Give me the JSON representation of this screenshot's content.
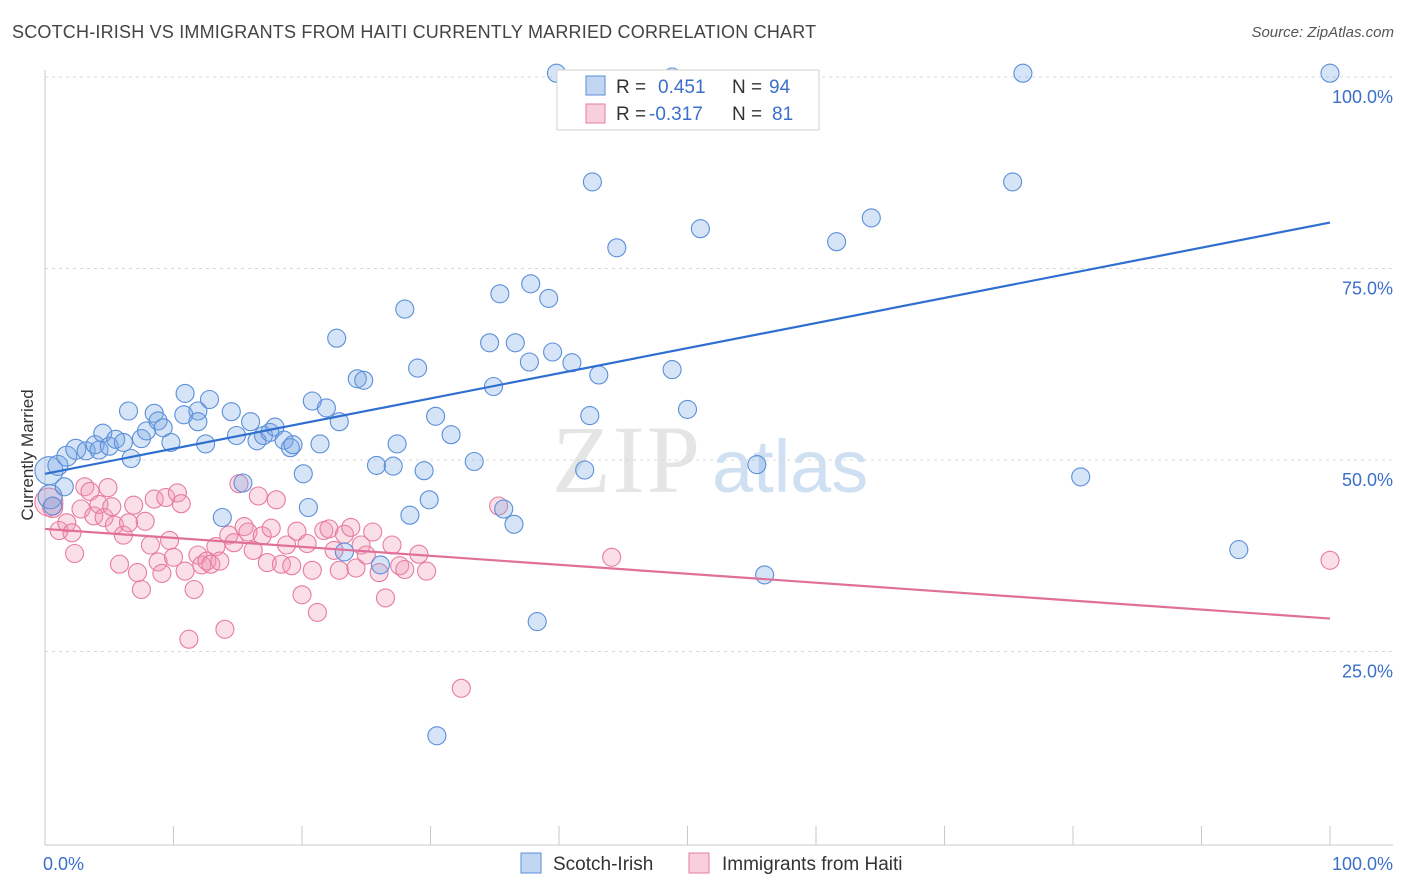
{
  "title": "SCOTCH-IRISH VS IMMIGRANTS FROM HAITI CURRENTLY MARRIED CORRELATION CHART",
  "source": "Source: ZipAtlas.com",
  "watermark": {
    "zip": "ZIP",
    "atlas": "atlas"
  },
  "colors": {
    "blue": "#5b8fd9",
    "blue_fill": "rgba(120,165,230,0.30)",
    "blue_line": "#2f6fcf",
    "pink": "#e87ba0",
    "pink_fill": "rgba(240,150,180,0.30)",
    "pink_line": "#e0709a",
    "grid": "#d8d8d8",
    "axis_text": "#3b6fc9"
  },
  "legend": {
    "rows": [
      {
        "r_label": "R =",
        "r_value": "0.451",
        "n_label": "N =",
        "n_value": "94",
        "color": "blue"
      },
      {
        "r_label": "R =",
        "r_value": "-0.317",
        "n_label": "N =",
        "n_value": "81",
        "color": "pink"
      }
    ]
  },
  "bottom_legend": [
    "Scotch-Irish",
    "Immigrants from Haiti"
  ],
  "chart_data": {
    "type": "scatter",
    "title": "SCOTCH-IRISH VS IMMIGRANTS FROM HAITI CURRENTLY MARRIED CORRELATION CHART",
    "xlabel": "",
    "ylabel": "Currently Married",
    "xlim": [
      0,
      100
    ],
    "ylim": [
      0,
      104
    ],
    "x_tick_labels": [
      "0.0%",
      "100.0%"
    ],
    "y_ticks": [
      25,
      50,
      75,
      100
    ],
    "y_tick_labels": [
      "25.0%",
      "50.0%",
      "75.0%",
      "100.0%"
    ],
    "grid": true,
    "legend_position": "top-center",
    "series": [
      {
        "name": "Scotch-Irish",
        "color": "blue",
        "r": 0.451,
        "n": 94,
        "trend": {
          "x0": 0,
          "y0": 48.2,
          "x1": 100,
          "y1": 81.0
        },
        "points": [
          [
            0.3,
            48.6,
            14
          ],
          [
            0.4,
            45.2,
            12
          ],
          [
            1.0,
            49.3,
            10
          ],
          [
            1.7,
            50.5,
            10
          ],
          [
            2.4,
            51.4,
            10
          ],
          [
            3.2,
            51.2,
            9
          ],
          [
            3.9,
            52.0,
            9
          ],
          [
            4.2,
            51.3,
            9
          ],
          [
            4.5,
            53.5,
            9
          ],
          [
            5.0,
            51.8,
            9
          ],
          [
            5.5,
            52.7,
            9
          ],
          [
            6.1,
            52.3,
            9
          ],
          [
            6.7,
            50.2,
            9
          ],
          [
            6.5,
            56.4,
            9
          ],
          [
            7.5,
            52.8,
            9
          ],
          [
            7.9,
            53.8,
            9
          ],
          [
            8.5,
            56.1,
            9
          ],
          [
            8.8,
            55.1,
            9
          ],
          [
            9.2,
            54.2,
            9
          ],
          [
            9.8,
            52.3,
            9
          ],
          [
            10.8,
            55.9,
            9
          ],
          [
            10.9,
            58.7,
            9
          ],
          [
            11.9,
            56.4,
            9
          ],
          [
            11.9,
            55.0,
            9
          ],
          [
            12.5,
            52.1,
            9
          ],
          [
            12.8,
            57.9,
            9
          ],
          [
            13.8,
            42.5,
            9
          ],
          [
            14.5,
            56.3,
            9
          ],
          [
            14.9,
            53.2,
            9
          ],
          [
            15.4,
            47.0,
            9
          ],
          [
            16.0,
            55.0,
            9
          ],
          [
            16.5,
            52.5,
            9
          ],
          [
            17.0,
            53.2,
            9
          ],
          [
            17.5,
            53.6,
            9
          ],
          [
            17.9,
            54.3,
            9
          ],
          [
            18.6,
            52.6,
            9
          ],
          [
            19.1,
            51.6,
            9
          ],
          [
            19.3,
            52.0,
            9
          ],
          [
            20.1,
            48.2,
            9
          ],
          [
            20.5,
            43.8,
            9
          ],
          [
            20.8,
            57.7,
            9
          ],
          [
            21.4,
            52.1,
            9
          ],
          [
            21.9,
            56.8,
            9
          ],
          [
            22.7,
            65.9,
            9
          ],
          [
            22.9,
            55.0,
            9
          ],
          [
            23.3,
            38.0,
            9
          ],
          [
            24.3,
            60.6,
            9
          ],
          [
            24.8,
            60.4,
            9
          ],
          [
            25.8,
            49.3,
            9
          ],
          [
            26.1,
            36.3,
            9
          ],
          [
            27.1,
            49.2,
            9
          ],
          [
            27.4,
            52.1,
            9
          ],
          [
            28.0,
            69.7,
            9
          ],
          [
            28.4,
            42.8,
            9
          ],
          [
            29.0,
            62.0,
            9
          ],
          [
            29.5,
            48.6,
            9
          ],
          [
            29.9,
            44.8,
            9
          ],
          [
            30.4,
            55.7,
            9
          ],
          [
            31.6,
            53.3,
            9
          ],
          [
            33.4,
            49.8,
            9
          ],
          [
            34.9,
            59.6,
            9
          ],
          [
            34.6,
            65.3,
            9
          ],
          [
            35.4,
            71.7,
            9
          ],
          [
            35.7,
            43.6,
            9
          ],
          [
            36.5,
            41.6,
            9
          ],
          [
            36.6,
            65.3,
            9
          ],
          [
            37.8,
            73.0,
            9
          ],
          [
            37.7,
            62.8,
            9
          ],
          [
            39.2,
            71.1,
            9
          ],
          [
            39.5,
            64.1,
            9
          ],
          [
            39.8,
            100.5,
            9
          ],
          [
            41.0,
            62.7,
            9
          ],
          [
            42.0,
            48.7,
            9
          ],
          [
            42.4,
            55.8,
            9
          ],
          [
            42.6,
            86.3,
            9
          ],
          [
            43.1,
            61.1,
            9
          ],
          [
            44.5,
            77.7,
            9
          ],
          [
            48.8,
            100.0,
            9
          ],
          [
            48.8,
            61.8,
            9
          ],
          [
            50.0,
            56.6,
            9
          ],
          [
            51.0,
            80.2,
            9
          ],
          [
            55.4,
            49.4,
            9
          ],
          [
            56.0,
            35.0,
            9
          ],
          [
            61.6,
            78.5,
            9
          ],
          [
            64.3,
            81.6,
            9
          ],
          [
            75.3,
            86.3,
            9
          ],
          [
            76.1,
            100.5,
            9
          ],
          [
            80.6,
            47.8,
            9
          ],
          [
            92.9,
            38.3,
            9
          ],
          [
            100.0,
            100.5,
            9
          ],
          [
            30.5,
            14.0,
            9
          ],
          [
            38.3,
            28.9,
            9
          ],
          [
            0.6,
            44.0,
            9
          ],
          [
            1.5,
            46.5,
            9
          ]
        ]
      },
      {
        "name": "Immigrants from Haiti",
        "color": "pink",
        "r": -0.317,
        "n": 81,
        "trend": {
          "x0": 0,
          "y0": 41.0,
          "x1": 100,
          "y1": 29.3
        },
        "points": [
          [
            0.3,
            44.5,
            14
          ],
          [
            0.6,
            43.8,
            10
          ],
          [
            1.1,
            40.8,
            9
          ],
          [
            1.7,
            41.8,
            9
          ],
          [
            2.1,
            40.5,
            9
          ],
          [
            2.3,
            37.8,
            9
          ],
          [
            2.8,
            43.6,
            9
          ],
          [
            3.1,
            46.5,
            9
          ],
          [
            3.5,
            45.9,
            9
          ],
          [
            3.8,
            42.7,
            9
          ],
          [
            4.2,
            44.2,
            9
          ],
          [
            4.6,
            42.5,
            9
          ],
          [
            4.9,
            46.4,
            9
          ],
          [
            5.2,
            43.9,
            9
          ],
          [
            5.4,
            41.5,
            9
          ],
          [
            5.8,
            36.4,
            9
          ],
          [
            6.1,
            40.2,
            9
          ],
          [
            6.5,
            41.8,
            9
          ],
          [
            6.9,
            44.1,
            9
          ],
          [
            7.2,
            35.3,
            9
          ],
          [
            7.5,
            33.1,
            9
          ],
          [
            7.8,
            42.0,
            9
          ],
          [
            8.2,
            38.9,
            9
          ],
          [
            8.5,
            44.9,
            9
          ],
          [
            8.8,
            36.7,
            9
          ],
          [
            9.1,
            35.2,
            9
          ],
          [
            9.4,
            45.1,
            9
          ],
          [
            9.7,
            39.5,
            9
          ],
          [
            10.0,
            37.3,
            9
          ],
          [
            10.3,
            45.7,
            9
          ],
          [
            10.6,
            44.3,
            9
          ],
          [
            10.9,
            35.5,
            9
          ],
          [
            11.2,
            26.6,
            9
          ],
          [
            11.6,
            33.1,
            9
          ],
          [
            11.9,
            37.6,
            9
          ],
          [
            12.2,
            36.3,
            9
          ],
          [
            12.6,
            36.8,
            9
          ],
          [
            12.9,
            36.4,
            9
          ],
          [
            13.3,
            38.7,
            9
          ],
          [
            13.6,
            36.8,
            9
          ],
          [
            14.0,
            27.9,
            9
          ],
          [
            14.3,
            40.2,
            9
          ],
          [
            14.7,
            39.2,
            9
          ],
          [
            15.1,
            46.9,
            9
          ],
          [
            15.5,
            41.3,
            9
          ],
          [
            15.8,
            40.6,
            9
          ],
          [
            16.2,
            38.2,
            9
          ],
          [
            16.6,
            45.3,
            9
          ],
          [
            16.9,
            40.1,
            9
          ],
          [
            17.3,
            36.6,
            9
          ],
          [
            17.6,
            41.1,
            9
          ],
          [
            18.0,
            44.8,
            9
          ],
          [
            18.4,
            36.4,
            9
          ],
          [
            18.8,
            38.9,
            9
          ],
          [
            19.2,
            36.2,
            9
          ],
          [
            19.6,
            40.7,
            9
          ],
          [
            20.0,
            32.4,
            9
          ],
          [
            20.4,
            39.1,
            9
          ],
          [
            20.8,
            35.6,
            9
          ],
          [
            21.2,
            30.1,
            9
          ],
          [
            21.7,
            40.8,
            9
          ],
          [
            22.1,
            41.0,
            9
          ],
          [
            22.5,
            38.2,
            9
          ],
          [
            22.9,
            35.6,
            9
          ],
          [
            23.3,
            40.3,
            9
          ],
          [
            23.8,
            41.2,
            9
          ],
          [
            24.2,
            35.9,
            9
          ],
          [
            24.6,
            38.9,
            9
          ],
          [
            25.0,
            37.6,
            9
          ],
          [
            25.5,
            40.6,
            9
          ],
          [
            26.0,
            35.3,
            9
          ],
          [
            26.5,
            32.0,
            9
          ],
          [
            27.0,
            38.9,
            9
          ],
          [
            27.6,
            36.2,
            9
          ],
          [
            28.0,
            35.7,
            9
          ],
          [
            29.1,
            37.7,
            9
          ],
          [
            29.7,
            35.5,
            9
          ],
          [
            32.4,
            20.2,
            9
          ],
          [
            35.3,
            44.0,
            9
          ],
          [
            44.1,
            37.3,
            9
          ],
          [
            100.0,
            36.9,
            9
          ]
        ]
      }
    ]
  }
}
